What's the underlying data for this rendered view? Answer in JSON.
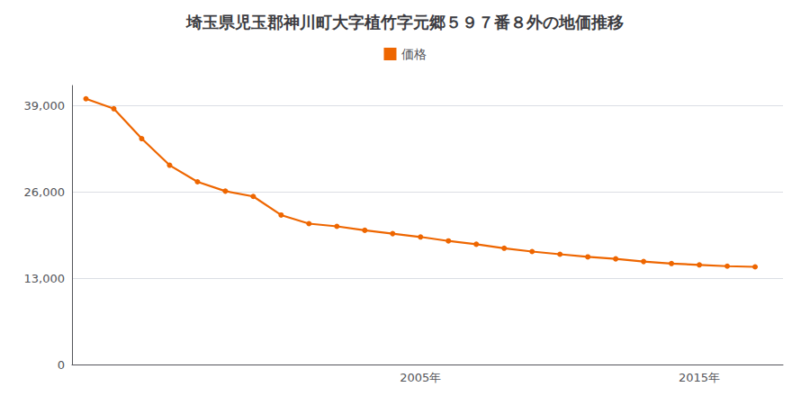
{
  "chart_data": {
    "type": "line",
    "title": "埼玉県児玉郡神川町大字植竹字元郷５９７番８外の地価推移",
    "x": [
      1993,
      1994,
      1995,
      1996,
      1997,
      1998,
      1999,
      2000,
      2001,
      2002,
      2003,
      2004,
      2005,
      2006,
      2007,
      2008,
      2009,
      2010,
      2011,
      2012,
      2013,
      2014,
      2015,
      2016,
      2017
    ],
    "series": [
      {
        "name": "価格",
        "color": "#EE6600",
        "values": [
          40000,
          38500,
          34000,
          30000,
          27500,
          26100,
          25300,
          22500,
          21200,
          20800,
          20200,
          19700,
          19200,
          18600,
          18100,
          17500,
          17000,
          16600,
          16200,
          15900,
          15500,
          15200,
          15000,
          14800,
          14700
        ]
      }
    ],
    "xlim": [
      1992.5,
      2018
    ],
    "xticks": [
      {
        "value": 2005,
        "label": "2005年"
      },
      {
        "value": 2015,
        "label": "2015年"
      }
    ],
    "ylim": [
      0,
      42000
    ],
    "yticks": [
      0,
      {
        "value": 13000,
        "label": "13,000"
      },
      {
        "value": 26000,
        "label": "26,000"
      },
      {
        "value": 39000,
        "label": "39,000"
      }
    ],
    "grid": true,
    "legend": "top",
    "marker": "circle"
  }
}
